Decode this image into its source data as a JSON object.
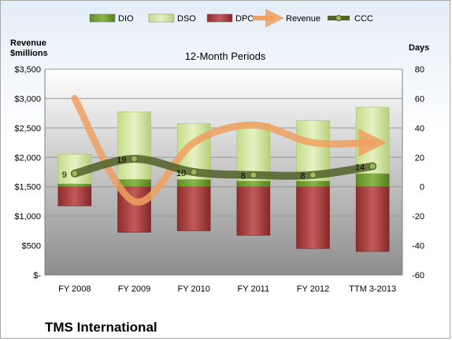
{
  "chart_data": {
    "type": "bar",
    "title": "12-Month Periods",
    "left_axis_title": "Revenue\n$millions",
    "right_axis_title": "Days",
    "company": "TMS International",
    "categories": [
      "FY 2008",
      "FY 2009",
      "FY 2010",
      "FY 2011",
      "FY 2012",
      "TTM 3-2013"
    ],
    "left_axis": {
      "min": 0,
      "max": 3500,
      "step": 500,
      "tick_labels": [
        "$-",
        "$500",
        "$1,000",
        "$1,500",
        "$2,000",
        "$2,500",
        "$3,000",
        "$3,500"
      ]
    },
    "right_axis": {
      "min": -60,
      "max": 80,
      "step": 20,
      "tick_labels": [
        "-60",
        "-40",
        "-20",
        "0",
        "20",
        "40",
        "60",
        "80"
      ]
    },
    "series": [
      {
        "name": "DIO",
        "unit": "days",
        "color": "#6f9d2f",
        "values": [
          2,
          5,
          5,
          4,
          4,
          9
        ]
      },
      {
        "name": "DSO",
        "unit": "days",
        "color": "#d6e8a6",
        "values": [
          20,
          46,
          38,
          39,
          41,
          45
        ]
      },
      {
        "name": "DPO",
        "unit": "days",
        "color": "#a33a3a",
        "values": [
          -13,
          -31,
          -30,
          -33,
          -42,
          -44
        ]
      },
      {
        "name": "Revenue",
        "unit": "$millions",
        "color": "#f0a060",
        "values": [
          3000,
          1250,
          2250,
          2550,
          2250,
          2250
        ]
      },
      {
        "name": "CCC",
        "unit": "days",
        "color": "#4f6228",
        "values": [
          9,
          19,
          10,
          8,
          8,
          14
        ],
        "data_labels": [
          "9",
          "19",
          "10",
          "8",
          "8",
          "14"
        ]
      }
    ],
    "legend": {
      "placement": "top",
      "entries": [
        "DIO",
        "DSO",
        "DPO",
        "Revenue",
        "CCC"
      ]
    },
    "grid": true
  }
}
